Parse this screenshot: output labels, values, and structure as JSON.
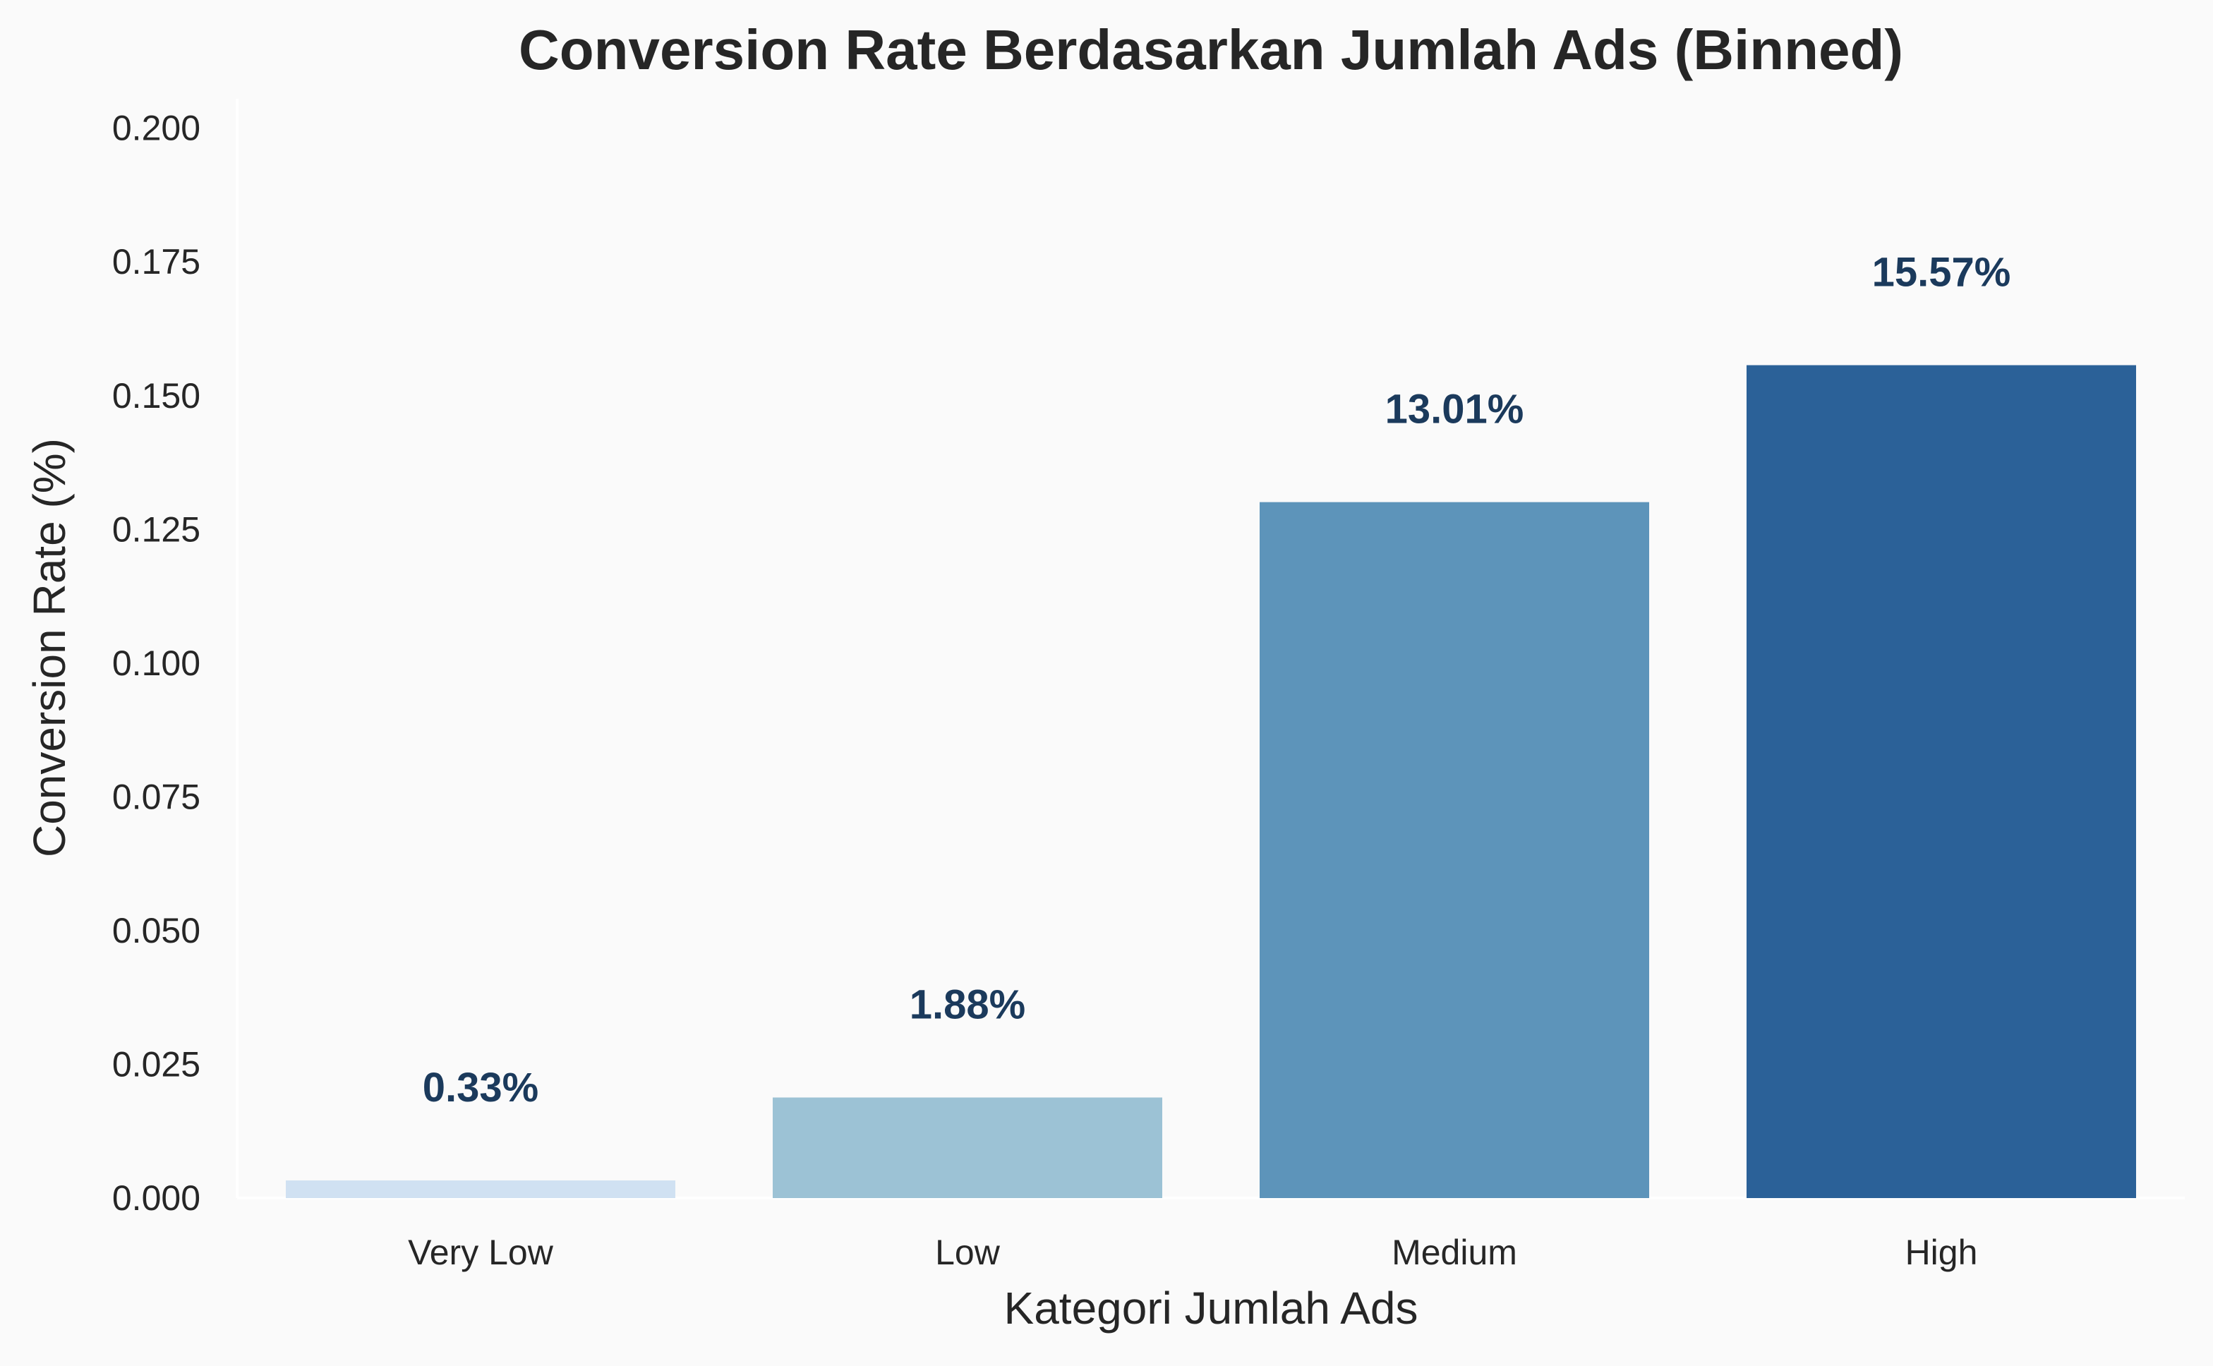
{
  "chart_data": {
    "type": "bar",
    "title": "Conversion Rate Berdasarkan Jumlah Ads (Binned)",
    "xlabel": "Kategori Jumlah Ads",
    "ylabel": "Conversion Rate (%)",
    "categories": [
      "Very Low",
      "Low",
      "Medium",
      "High"
    ],
    "values": [
      0.0033,
      0.0188,
      0.1301,
      0.1557
    ],
    "data_labels": [
      "0.33%",
      "1.88%",
      "13.01%",
      "15.57%"
    ],
    "bar_colors": [
      "#d0e1f2",
      "#9cc2d5",
      "#5d94ba",
      "#2b6198"
    ],
    "yticks": [
      0,
      0.025,
      0.05,
      0.075,
      0.1,
      0.125,
      0.15,
      0.175,
      0.2
    ],
    "ytick_labels": [
      "0.000",
      "0.025",
      "0.050",
      "0.075",
      "0.100",
      "0.125",
      "0.150",
      "0.175",
      "0.200"
    ],
    "ylim": [
      0,
      0.2055
    ],
    "grid": false,
    "legend": "none",
    "background": "#fafafa"
  }
}
